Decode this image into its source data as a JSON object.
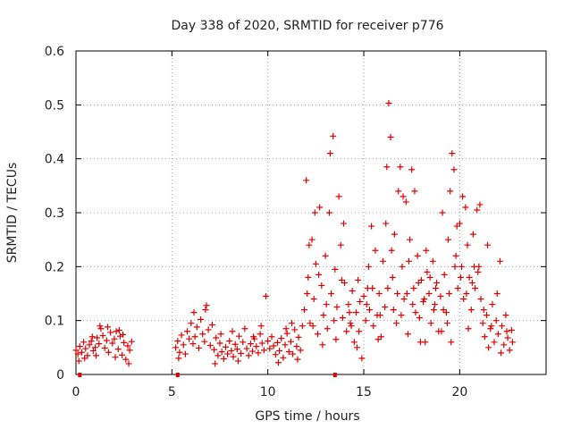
{
  "chart_data": {
    "type": "scatter",
    "title": "Day 338 of 2020, SRMTID for receiver p776",
    "xlabel": "GPS time / hours",
    "ylabel": "SRMTID / TECUs",
    "xlim": [
      0,
      24.5
    ],
    "ylim": [
      0,
      0.6
    ],
    "x_ticks": [
      0,
      5,
      10,
      15,
      20
    ],
    "x_tick_labels": [
      "0",
      "5",
      "10",
      "15",
      "20"
    ],
    "y_ticks": [
      0,
      0.1,
      0.2,
      0.3,
      0.4,
      0.5,
      0.6
    ],
    "y_tick_labels": [
      "0",
      "0.1",
      "0.2",
      "0.3",
      "0.4",
      "0.5",
      "0.6"
    ],
    "grid": true,
    "marker": "+",
    "color": "#e00000",
    "zero_markers_x": [
      0.2,
      5.3,
      13.5
    ],
    "series": [
      {
        "name": "SRMTID",
        "points": [
          [
            0.0,
            0.045
          ],
          [
            0.1,
            0.038
          ],
          [
            0.2,
            0.052
          ],
          [
            0.3,
            0.041
          ],
          [
            0.4,
            0.06
          ],
          [
            0.5,
            0.048
          ],
          [
            0.6,
            0.035
          ],
          [
            0.7,
            0.055
          ],
          [
            0.8,
            0.062
          ],
          [
            0.9,
            0.044
          ],
          [
            1.0,
            0.05
          ],
          [
            1.1,
            0.068
          ],
          [
            1.2,
            0.057
          ],
          [
            1.3,
            0.085
          ],
          [
            1.4,
            0.072
          ],
          [
            1.5,
            0.049
          ],
          [
            1.6,
            0.063
          ],
          [
            1.7,
            0.041
          ],
          [
            1.8,
            0.078
          ],
          [
            1.9,
            0.058
          ],
          [
            2.0,
            0.066
          ],
          [
            2.1,
            0.08
          ],
          [
            2.2,
            0.047
          ],
          [
            2.3,
            0.071
          ],
          [
            2.4,
            0.036
          ],
          [
            2.5,
            0.059
          ],
          [
            2.6,
            0.028
          ],
          [
            2.7,
            0.053
          ],
          [
            2.8,
            0.045
          ],
          [
            2.9,
            0.061
          ],
          [
            0.15,
            0.025
          ],
          [
            0.45,
            0.03
          ],
          [
            0.85,
            0.07
          ],
          [
            1.25,
            0.09
          ],
          [
            1.65,
            0.088
          ],
          [
            2.05,
            0.032
          ],
          [
            2.45,
            0.074
          ],
          [
            2.75,
            0.02
          ],
          [
            1.05,
            0.035
          ],
          [
            2.25,
            0.082
          ],
          [
            5.2,
            0.05
          ],
          [
            5.3,
            0.062
          ],
          [
            5.4,
            0.041
          ],
          [
            5.5,
            0.073
          ],
          [
            5.6,
            0.055
          ],
          [
            5.7,
            0.038
          ],
          [
            5.8,
            0.08
          ],
          [
            5.9,
            0.066
          ],
          [
            6.0,
            0.095
          ],
          [
            6.1,
            0.057
          ],
          [
            6.2,
            0.07
          ],
          [
            6.3,
            0.088
          ],
          [
            6.4,
            0.049
          ],
          [
            6.5,
            0.102
          ],
          [
            6.6,
            0.075
          ],
          [
            6.7,
            0.061
          ],
          [
            6.8,
            0.128
          ],
          [
            6.9,
            0.083
          ],
          [
            7.0,
            0.054
          ],
          [
            7.1,
            0.092
          ],
          [
            7.2,
            0.046
          ],
          [
            7.3,
            0.068
          ],
          [
            7.4,
            0.035
          ],
          [
            7.5,
            0.058
          ],
          [
            7.6,
            0.042
          ],
          [
            7.7,
            0.029
          ],
          [
            7.8,
            0.051
          ],
          [
            7.9,
            0.038
          ],
          [
            8.0,
            0.062
          ],
          [
            8.1,
            0.044
          ],
          [
            8.2,
            0.033
          ],
          [
            8.3,
            0.056
          ],
          [
            8.4,
            0.047
          ],
          [
            8.5,
            0.071
          ],
          [
            8.6,
            0.039
          ],
          [
            8.7,
            0.06
          ],
          [
            8.8,
            0.085
          ],
          [
            8.9,
            0.048
          ],
          [
            9.0,
            0.035
          ],
          [
            9.1,
            0.057
          ],
          [
            9.2,
            0.043
          ],
          [
            9.3,
            0.066
          ],
          [
            9.4,
            0.052
          ],
          [
            9.5,
            0.04
          ],
          [
            9.6,
            0.075
          ],
          [
            9.7,
            0.058
          ],
          [
            9.8,
            0.045
          ],
          [
            9.9,
            0.145
          ],
          [
            10.0,
            0.062
          ],
          [
            10.1,
            0.048
          ],
          [
            10.2,
            0.07
          ],
          [
            10.3,
            0.053
          ],
          [
            10.4,
            0.037
          ],
          [
            10.5,
            0.059
          ],
          [
            10.6,
            0.044
          ],
          [
            10.7,
            0.067
          ],
          [
            10.8,
            0.031
          ],
          [
            10.9,
            0.055
          ],
          [
            11.0,
            0.076
          ],
          [
            11.1,
            0.042
          ],
          [
            11.2,
            0.061
          ],
          [
            11.3,
            0.038
          ],
          [
            11.4,
            0.083
          ],
          [
            11.5,
            0.052
          ],
          [
            11.6,
            0.069
          ],
          [
            11.7,
            0.045
          ],
          [
            11.8,
            0.09
          ],
          [
            5.35,
            0.03
          ],
          [
            6.15,
            0.115
          ],
          [
            7.25,
            0.02
          ],
          [
            8.45,
            0.025
          ],
          [
            9.65,
            0.09
          ],
          [
            10.55,
            0.022
          ],
          [
            11.25,
            0.095
          ],
          [
            11.55,
            0.028
          ],
          [
            6.75,
            0.12
          ],
          [
            9.25,
            0.07
          ],
          [
            10.95,
            0.085
          ],
          [
            8.15,
            0.08
          ],
          [
            7.55,
            0.075
          ],
          [
            11.9,
            0.12
          ],
          [
            12.0,
            0.36
          ],
          [
            12.1,
            0.18
          ],
          [
            12.2,
            0.095
          ],
          [
            12.3,
            0.25
          ],
          [
            12.4,
            0.14
          ],
          [
            12.5,
            0.205
          ],
          [
            12.6,
            0.075
          ],
          [
            12.7,
            0.31
          ],
          [
            12.8,
            0.165
          ],
          [
            12.9,
            0.11
          ],
          [
            13.0,
            0.22
          ],
          [
            13.1,
            0.085
          ],
          [
            13.2,
            0.3
          ],
          [
            13.3,
            0.15
          ],
          [
            13.4,
            0.442
          ],
          [
            13.5,
            0.195
          ],
          [
            13.6,
            0.125
          ],
          [
            13.7,
            0.33
          ],
          [
            13.8,
            0.24
          ],
          [
            13.9,
            0.105
          ],
          [
            14.0,
            0.17
          ],
          [
            14.1,
            0.08
          ],
          [
            14.2,
            0.13
          ],
          [
            14.3,
            0.095
          ],
          [
            14.4,
            0.155
          ],
          [
            14.5,
            0.06
          ],
          [
            14.6,
            0.115
          ],
          [
            14.7,
            0.175
          ],
          [
            14.8,
            0.135
          ],
          [
            14.9,
            0.03
          ],
          [
            15.0,
            0.145
          ],
          [
            15.1,
            0.1
          ],
          [
            15.2,
            0.16
          ],
          [
            15.3,
            0.12
          ],
          [
            15.4,
            0.275
          ],
          [
            15.5,
            0.09
          ],
          [
            15.6,
            0.23
          ],
          [
            15.7,
            0.11
          ],
          [
            15.8,
            0.15
          ],
          [
            15.9,
            0.07
          ],
          [
            16.0,
            0.21
          ],
          [
            16.1,
            0.125
          ],
          [
            16.2,
            0.385
          ],
          [
            16.3,
            0.503
          ],
          [
            16.4,
            0.44
          ],
          [
            16.5,
            0.18
          ],
          [
            16.6,
            0.26
          ],
          [
            16.7,
            0.095
          ],
          [
            16.8,
            0.34
          ],
          [
            16.9,
            0.385
          ],
          [
            17.0,
            0.2
          ],
          [
            17.1,
            0.14
          ],
          [
            17.2,
            0.32
          ],
          [
            17.3,
            0.075
          ],
          [
            17.4,
            0.25
          ],
          [
            17.5,
            0.38
          ],
          [
            17.6,
            0.16
          ],
          [
            17.7,
            0.115
          ],
          [
            17.8,
            0.22
          ],
          [
            17.9,
            0.105
          ],
          [
            18.0,
            0.175
          ],
          [
            18.1,
            0.135
          ],
          [
            18.2,
            0.06
          ],
          [
            18.3,
            0.19
          ],
          [
            18.4,
            0.15
          ],
          [
            18.5,
            0.095
          ],
          [
            18.6,
            0.21
          ],
          [
            18.7,
            0.13
          ],
          [
            18.8,
            0.17
          ],
          [
            18.9,
            0.08
          ],
          [
            19.0,
            0.145
          ],
          [
            19.1,
            0.3
          ],
          [
            19.2,
            0.185
          ],
          [
            19.3,
            0.115
          ],
          [
            19.4,
            0.25
          ],
          [
            19.5,
            0.34
          ],
          [
            19.6,
            0.41
          ],
          [
            19.7,
            0.38
          ],
          [
            19.8,
            0.22
          ],
          [
            19.9,
            0.16
          ],
          [
            20.0,
            0.28
          ],
          [
            20.1,
            0.2
          ],
          [
            20.2,
            0.14
          ],
          [
            20.3,
            0.31
          ],
          [
            20.4,
            0.24
          ],
          [
            20.5,
            0.18
          ],
          [
            20.6,
            0.12
          ],
          [
            20.7,
            0.26
          ],
          [
            20.8,
            0.16
          ],
          [
            20.9,
            0.305
          ],
          [
            21.0,
            0.2
          ],
          [
            21.1,
            0.14
          ],
          [
            21.2,
            0.095
          ],
          [
            21.3,
            0.07
          ],
          [
            21.4,
            0.11
          ],
          [
            21.5,
            0.05
          ],
          [
            21.6,
            0.085
          ],
          [
            21.7,
            0.13
          ],
          [
            21.8,
            0.06
          ],
          [
            21.9,
            0.1
          ],
          [
            22.0,
            0.075
          ],
          [
            22.1,
            0.21
          ],
          [
            22.2,
            0.09
          ],
          [
            22.3,
            0.055
          ],
          [
            22.4,
            0.11
          ],
          [
            22.5,
            0.068
          ],
          [
            22.6,
            0.045
          ],
          [
            22.7,
            0.082
          ],
          [
            22.75,
            0.06
          ],
          [
            12.15,
            0.24
          ],
          [
            12.45,
            0.3
          ],
          [
            12.85,
            0.055
          ],
          [
            13.25,
            0.41
          ],
          [
            13.55,
            0.065
          ],
          [
            13.95,
            0.28
          ],
          [
            14.35,
            0.09
          ],
          [
            14.65,
            0.05
          ],
          [
            15.25,
            0.2
          ],
          [
            15.75,
            0.065
          ],
          [
            16.15,
            0.28
          ],
          [
            16.45,
            0.23
          ],
          [
            16.75,
            0.15
          ],
          [
            17.05,
            0.33
          ],
          [
            17.35,
            0.21
          ],
          [
            17.65,
            0.34
          ],
          [
            17.95,
            0.06
          ],
          [
            18.25,
            0.23
          ],
          [
            18.65,
            0.12
          ],
          [
            19.05,
            0.08
          ],
          [
            19.35,
            0.095
          ],
          [
            19.55,
            0.06
          ],
          [
            19.85,
            0.275
          ],
          [
            20.15,
            0.33
          ],
          [
            20.45,
            0.085
          ],
          [
            20.75,
            0.2
          ],
          [
            21.05,
            0.315
          ],
          [
            21.45,
            0.24
          ],
          [
            21.95,
            0.15
          ],
          [
            22.15,
            0.04
          ],
          [
            12.05,
            0.15
          ],
          [
            12.35,
            0.09
          ],
          [
            12.65,
            0.185
          ],
          [
            13.05,
            0.13
          ],
          [
            13.45,
            0.1
          ],
          [
            13.85,
            0.175
          ],
          [
            14.25,
            0.115
          ],
          [
            14.75,
            0.08
          ],
          [
            15.15,
            0.13
          ],
          [
            15.45,
            0.16
          ],
          [
            15.85,
            0.11
          ],
          [
            16.25,
            0.16
          ],
          [
            16.55,
            0.12
          ],
          [
            16.95,
            0.11
          ],
          [
            17.25,
            0.15
          ],
          [
            17.55,
            0.13
          ],
          [
            17.85,
            0.17
          ],
          [
            18.15,
            0.14
          ],
          [
            18.45,
            0.18
          ],
          [
            18.75,
            0.16
          ],
          [
            19.15,
            0.12
          ],
          [
            19.45,
            0.15
          ],
          [
            19.75,
            0.2
          ],
          [
            20.05,
            0.18
          ],
          [
            20.35,
            0.15
          ],
          [
            20.65,
            0.17
          ],
          [
            20.95,
            0.19
          ],
          [
            21.25,
            0.12
          ],
          [
            21.65,
            0.09
          ],
          [
            22.45,
            0.08
          ]
        ]
      }
    ]
  }
}
